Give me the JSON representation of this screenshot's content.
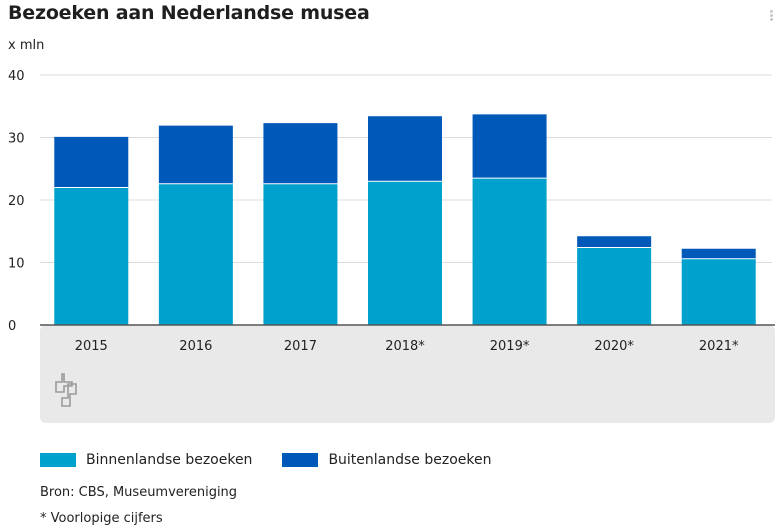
{
  "title": "Bezoeken aan Nederlandse musea",
  "unit_label": "x mln",
  "source": "Bron: CBS, Museumvereniging",
  "footnote": "* Voorlopige cijfers",
  "icons": {
    "menu": "more-vertical-icon",
    "logo": "cbs-logo-icon"
  },
  "colors": {
    "binnenlandse": "#00a1cd",
    "buitenlandse": "#0058b8",
    "plot_bg": "#e9e9e9"
  },
  "chart_data": {
    "type": "bar",
    "stacked": true,
    "title": "Bezoeken aan Nederlandse musea",
    "ylabel": "x mln",
    "ylim": [
      0,
      40
    ],
    "yticks": [
      0,
      10,
      20,
      30,
      40
    ],
    "grid": true,
    "legend_position": "bottom",
    "categories": [
      "2015",
      "2016",
      "2017",
      "2018*",
      "2019*",
      "2020*",
      "2021*"
    ],
    "series": [
      {
        "name": "Binnenlandse bezoeken",
        "color": "#00a1cd",
        "values": [
          22.0,
          22.6,
          22.6,
          23.0,
          23.5,
          12.4,
          10.6
        ]
      },
      {
        "name": "Buitenlandse bezoeken",
        "color": "#0058b8",
        "values": [
          8.1,
          9.3,
          9.7,
          10.4,
          10.2,
          1.8,
          1.6
        ]
      }
    ]
  }
}
